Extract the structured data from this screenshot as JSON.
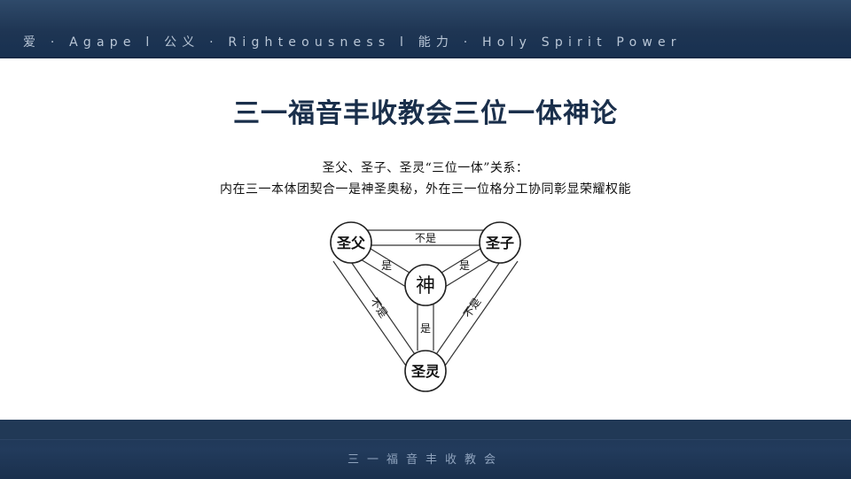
{
  "header": {
    "tagline": "爱 · Agape  l  公义 · Righteousness  l  能力 · Holy Spirit Power"
  },
  "title": "三一福音丰收教会三位一体神论",
  "subtitle": {
    "line1": "圣父、圣子、圣灵“三位一体”关系：",
    "line2": "内在三一本体团契合一是神圣奥秘，外在三一位格分工协同彰显荣耀权能"
  },
  "diagram": {
    "nodes": {
      "father": "圣父",
      "son": "圣子",
      "spirit": "圣灵",
      "god": "神"
    },
    "links": {
      "father_son": "不是",
      "father_spirit": "不是",
      "son_spirit": "不是",
      "father_god": "是",
      "son_god": "是",
      "spirit_god": "是"
    }
  },
  "footer": {
    "text": "三一福音丰收教会"
  }
}
